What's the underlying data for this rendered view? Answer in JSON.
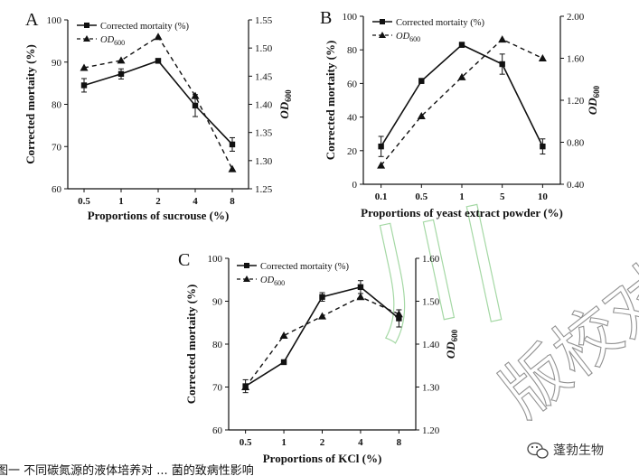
{
  "chart_data": [
    {
      "type": "line",
      "panel": "A",
      "categories": [
        "0.5",
        "1",
        "2",
        "4",
        "8"
      ],
      "xlabel": "Proportions of sucrouse (%)",
      "ylabel": "Corrected mortaity (%)",
      "y2label_main": "OD",
      "y2label_sub": "600",
      "ylim": [
        60,
        100
      ],
      "y2lim": [
        1.25,
        1.55
      ],
      "yticks": [
        "60",
        "70",
        "80",
        "90",
        "100"
      ],
      "y2ticks": [
        "1.25",
        "1.30",
        "1.35",
        "1.40",
        "1.45",
        "1.50",
        "1.55"
      ],
      "series": [
        {
          "name": "Corrected mortaity (%)",
          "axis": "left",
          "style": "solid",
          "marker": "square",
          "values": [
            84.5,
            87.2,
            90.3,
            79.7,
            70.5
          ],
          "errors": [
            1.6,
            1.2,
            0,
            2.6,
            1.6
          ]
        },
        {
          "name_main": "OD",
          "name_sub": "600",
          "axis": "right",
          "style": "dashed",
          "marker": "triangle",
          "values": [
            1.465,
            1.478,
            1.52,
            1.415,
            1.285
          ]
        }
      ]
    },
    {
      "type": "line",
      "panel": "B",
      "categories": [
        "0.1",
        "0.5",
        "1",
        "5",
        "10"
      ],
      "xlabel": "Proportions of yeast extract powder (%)",
      "ylabel": "Corrected mortaity (%)",
      "y2label_main": "OD",
      "y2label_sub": "600",
      "ylim": [
        0,
        100
      ],
      "y2lim": [
        0.4,
        2.0
      ],
      "yticks": [
        "0",
        "20",
        "40",
        "60",
        "80",
        "100"
      ],
      "y2ticks": [
        "0.40",
        "0.80",
        "1.20",
        "1.60",
        "2.00"
      ],
      "series": [
        {
          "name": "Corrected mortaity (%)",
          "axis": "left",
          "style": "solid",
          "marker": "square",
          "values": [
            22.5,
            61.5,
            83,
            71.5,
            22.5
          ],
          "errors": [
            6,
            1.5,
            1.5,
            6,
            4.5
          ]
        },
        {
          "name_main": "OD",
          "name_sub": "600",
          "axis": "right",
          "style": "dashed",
          "marker": "triangle",
          "values": [
            0.58,
            1.05,
            1.42,
            1.78,
            1.6
          ]
        }
      ]
    },
    {
      "type": "line",
      "panel": "C",
      "categories": [
        "0.5",
        "1",
        "2",
        "4",
        "8"
      ],
      "xlabel": "Proportions of KCl (%)",
      "ylabel": "Corrected mortaity (%)",
      "y2label_main": "OD",
      "y2label_sub": "600",
      "ylim": [
        60,
        100
      ],
      "y2lim": [
        1.2,
        1.6
      ],
      "yticks": [
        "60",
        "70",
        "80",
        "90",
        "100"
      ],
      "y2ticks": [
        "1.20",
        "1.30",
        "1.40",
        "1.50",
        "1.60"
      ],
      "series": [
        {
          "name": "Corrected mortaity (%)",
          "axis": "left",
          "style": "solid",
          "marker": "square",
          "values": [
            70.2,
            75.8,
            91,
            93.3,
            86
          ],
          "errors": [
            1.5,
            0,
            1,
            1.5,
            2
          ]
        },
        {
          "name_main": "OD",
          "name_sub": "600",
          "axis": "right",
          "style": "dashed",
          "marker": "triangle",
          "values": [
            1.3,
            1.42,
            1.465,
            1.51,
            1.47
          ]
        }
      ]
    }
  ],
  "watermark": "版校对",
  "caption": "图一 不同碳氮源的液体培养对 ... 菌的致病性影响",
  "logo": {
    "name": "蓬勃生物",
    "icon": "wechat-icon"
  }
}
